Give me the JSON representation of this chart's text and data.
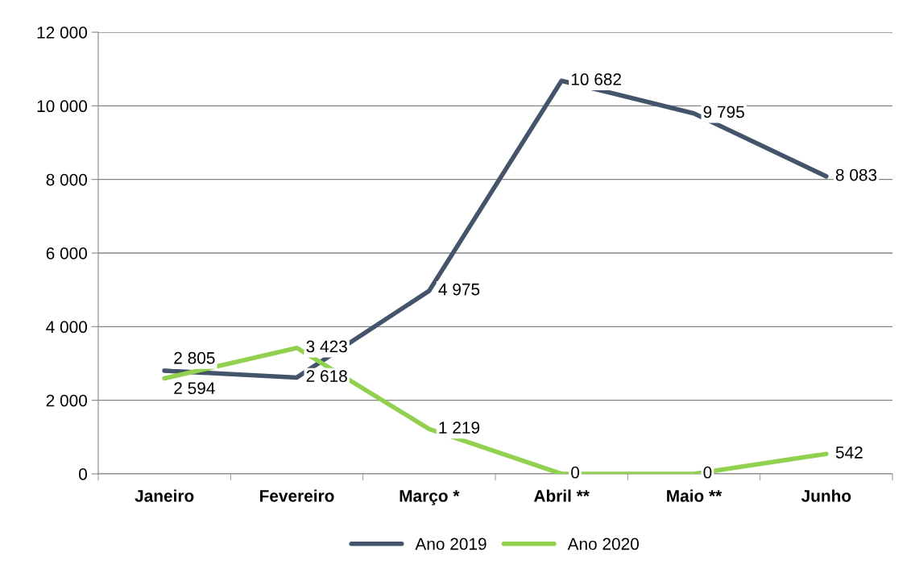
{
  "chart_data": {
    "type": "line",
    "categories": [
      "Janeiro",
      "Fevereiro",
      "Março *",
      "Abril **",
      "Maio **",
      "Junho"
    ],
    "series": [
      {
        "name": "Ano 2019",
        "color": "#44546a",
        "values": [
          2805,
          2618,
          4975,
          10682,
          9795,
          8083
        ],
        "value_labels": [
          "2 805",
          "2 618",
          "4 975",
          "10 682",
          "9 795",
          "8 083"
        ]
      },
      {
        "name": "Ano 2020",
        "color": "#92d050",
        "values": [
          2594,
          3423,
          1219,
          0,
          0,
          542
        ],
        "value_labels": [
          "2 594",
          "3 423",
          "1 219",
          "0",
          "0",
          "542"
        ]
      }
    ],
    "ylim": [
      0,
      12000
    ],
    "yticks": [
      {
        "value": 0,
        "label": "0"
      },
      {
        "value": 2000,
        "label": "2 000"
      },
      {
        "value": 4000,
        "label": "4 000"
      },
      {
        "value": 6000,
        "label": "6 000"
      },
      {
        "value": 8000,
        "label": "8 000"
      },
      {
        "value": 10000,
        "label": "10 000"
      },
      {
        "value": 12000,
        "label": "12 000"
      }
    ],
    "grid": "y",
    "legend": "bottom",
    "marker": "none",
    "line_style": "solid"
  }
}
